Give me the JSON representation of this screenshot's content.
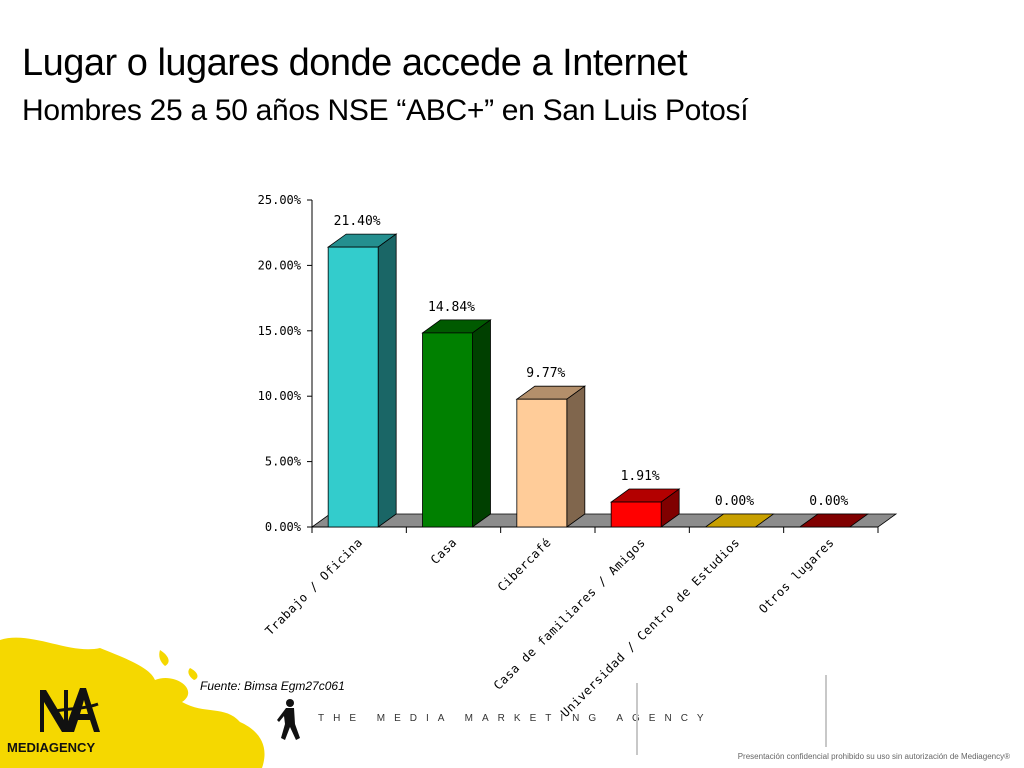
{
  "header": {
    "title": "Lugar o lugares donde accede a Internet",
    "subtitle": "Hombres 25 a 50 años NSE “ABC+” en San Luis Potosí"
  },
  "chart_data": {
    "type": "bar",
    "categories": [
      "Trabajo / Oficina",
      "Casa",
      "Cibercafé",
      "Casa de familiares / Amigos",
      "Universidad / Centro de Estudios",
      "Otros lugares"
    ],
    "values": [
      21.4,
      14.84,
      9.77,
      1.91,
      0.0,
      0.0
    ],
    "value_labels": [
      "21.40%",
      "14.84%",
      "9.77%",
      "1.91%",
      "0.00%",
      "0.00%"
    ],
    "colors": [
      "#33cccc",
      "#008000",
      "#ffcc99",
      "#ff0000",
      "#c8a000",
      "#800000"
    ],
    "ylim": [
      0,
      25
    ],
    "yticks": [
      "0.00%",
      "5.00%",
      "10.00%",
      "15.00%",
      "20.00%",
      "25.00%"
    ],
    "grid": false,
    "style": "3d-bar"
  },
  "footer": {
    "source": "Fuente: Bimsa Egm27c061",
    "tagline": "THE MEDIA MARKETING AGENCY",
    "brand": "MEDIAGENCY",
    "logo_mark": "MA",
    "confidential": "Presentación confidencial prohibido su uso sin autorización de Mediagency®"
  },
  "colors": {
    "brand_yellow": "#f5d800",
    "floor": "#8c8c8c"
  }
}
